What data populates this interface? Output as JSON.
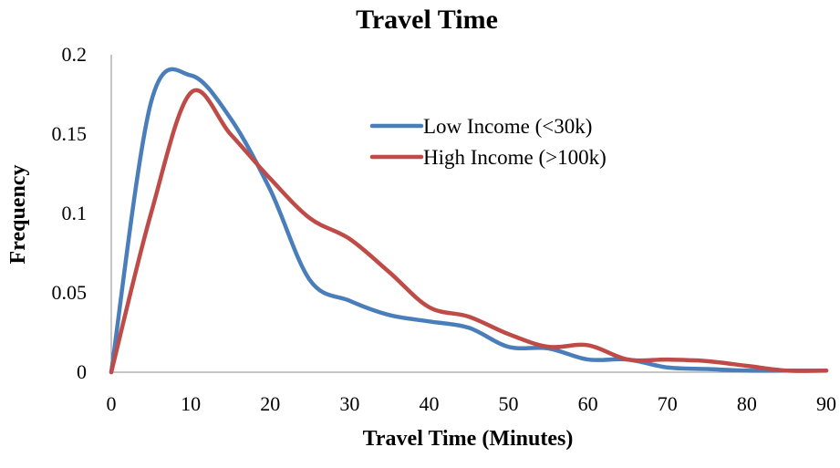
{
  "chart_data": {
    "type": "line",
    "title": "Travel Time",
    "xlabel": "Travel Time (Minutes)",
    "ylabel": "Frequency",
    "xlim": [
      0,
      90
    ],
    "ylim": [
      0,
      0.2
    ],
    "x_ticks": [
      "0",
      "10",
      "20",
      "30",
      "40",
      "50",
      "60",
      "70",
      "80",
      "90"
    ],
    "y_ticks": [
      "0",
      "0.05",
      "0.1",
      "0.15",
      "0.2"
    ],
    "grid": false,
    "legend_position": "top-right",
    "x": [
      0,
      5,
      10,
      15,
      20,
      25,
      30,
      35,
      40,
      45,
      50,
      55,
      60,
      65,
      70,
      75,
      80,
      85,
      90
    ],
    "series": [
      {
        "name": "Low Income (<30k)",
        "color": "#4a7ebb",
        "values": [
          0,
          0.17,
          0.187,
          0.16,
          0.115,
          0.058,
          0.045,
          0.036,
          0.032,
          0.028,
          0.016,
          0.015,
          0.008,
          0.008,
          0.003,
          0.002,
          0.001,
          0.001,
          0.001
        ]
      },
      {
        "name": "High Income (>100k)",
        "color": "#be4b48",
        "values": [
          0,
          0.1,
          0.176,
          0.15,
          0.122,
          0.097,
          0.084,
          0.063,
          0.041,
          0.035,
          0.024,
          0.016,
          0.017,
          0.008,
          0.008,
          0.007,
          0.004,
          0.001,
          0.001
        ]
      }
    ]
  }
}
